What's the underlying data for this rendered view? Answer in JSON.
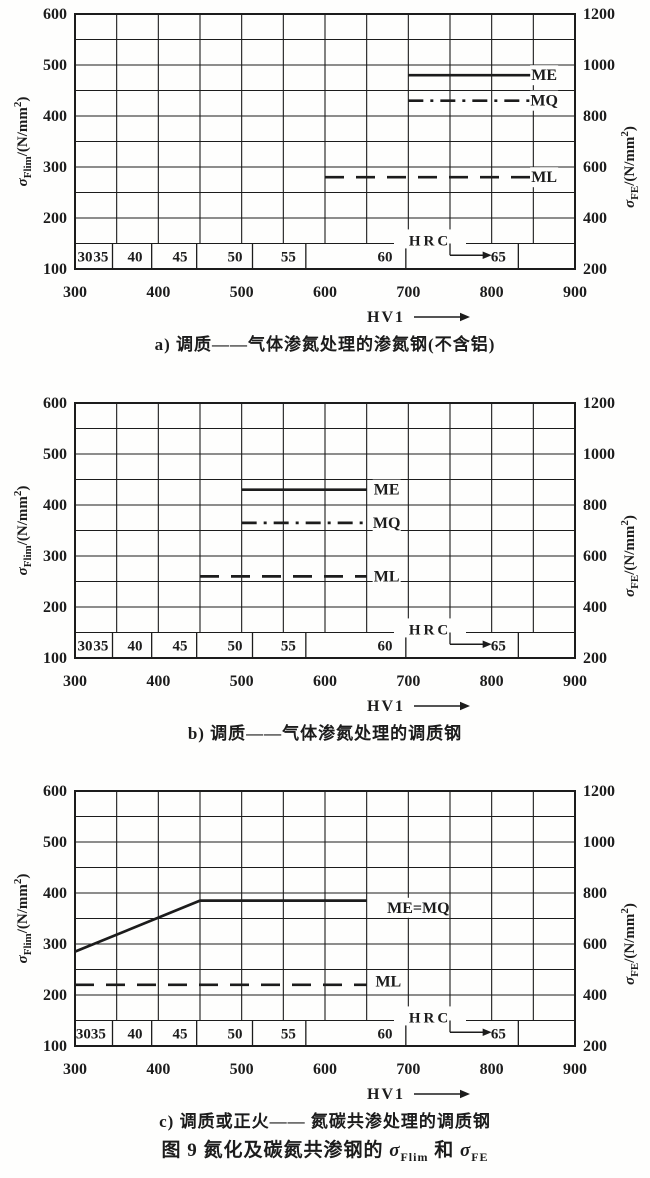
{
  "colors": {
    "ink": "#1c1c1c",
    "paper": "#ffffff"
  },
  "axis_label_parts": {
    "left": [
      {
        "t": "σ",
        "italic": true
      },
      {
        "t": "Flim",
        "sub": true
      },
      {
        "t": "/(N/mm"
      },
      {
        "t": "2",
        "sup": true
      },
      {
        "t": ")"
      }
    ],
    "right": [
      {
        "t": "σ",
        "italic": true
      },
      {
        "t": "FE",
        "sub": true
      },
      {
        "t": "/(N/mm"
      },
      {
        "t": "2",
        "sup": true
      },
      {
        "t": ")"
      }
    ]
  },
  "figure_title": {
    "prefix": "图 9  氮化及碳氮共渗钢的 ",
    "sigma1": "σ",
    "sub1": "Flim",
    "mid": " 和 ",
    "sigma2": "σ",
    "sub2": "FE"
  },
  "chart_data": [
    {
      "id": "a",
      "type": "line",
      "caption": "a) 调质——气体渗氮处理的渗氮钢(不含铝)",
      "xlabel": "HV1",
      "x": {
        "min": 300,
        "max": 900,
        "ticks": [
          300,
          400,
          500,
          600,
          700,
          800,
          900
        ],
        "grid_step": 50
      },
      "y_left": {
        "label": "σFlim/(N/mm²)",
        "min": 100,
        "max": 600,
        "ticks": [
          600,
          500,
          400,
          300,
          200,
          100
        ],
        "grid_step": 50
      },
      "y_right": {
        "label": "σFE/(N/mm²)",
        "min": 200,
        "max": 1200,
        "ticks": [
          1200,
          1000,
          800,
          600,
          400,
          200
        ]
      },
      "series": [
        {
          "name": "ME",
          "style": "solid",
          "points": [
            [
              700,
              480
            ],
            [
              850,
              480
            ]
          ],
          "label_at": [
            863,
            480
          ]
        },
        {
          "name": "MQ",
          "style": "dashdot",
          "points": [
            [
              700,
              430
            ],
            [
              850,
              430
            ]
          ],
          "label_at": [
            863,
            430
          ]
        },
        {
          "name": "ML",
          "style": "dashed",
          "points": [
            [
              600,
              280
            ],
            [
              848,
              280
            ]
          ],
          "label_at": [
            863,
            280
          ]
        }
      ],
      "hrc": {
        "label": "HRC",
        "label_center_hv": 726,
        "label_v": 158,
        "values": [
          30,
          35,
          40,
          45,
          50,
          55,
          60,
          65
        ],
        "value_hv": [
          312,
          331,
          372,
          426,
          492,
          556,
          672,
          808
        ],
        "tick_hv": [
          345,
          392,
          446,
          513,
          577,
          697,
          832
        ],
        "arrow_from_hv": 750,
        "arrow_to_hv": 800,
        "arrow_v": 127
      }
    },
    {
      "id": "b",
      "type": "line",
      "caption": "b) 调质——气体渗氮处理的调质钢",
      "xlabel": "HV1",
      "x": {
        "min": 300,
        "max": 900,
        "ticks": [
          300,
          400,
          500,
          600,
          700,
          800,
          900
        ],
        "grid_step": 50
      },
      "y_left": {
        "label": "σFlim/(N/mm²)",
        "min": 100,
        "max": 600,
        "ticks": [
          600,
          500,
          400,
          300,
          200,
          100
        ],
        "grid_step": 50
      },
      "y_right": {
        "label": "σFE/(N/mm²)",
        "min": 200,
        "max": 1200,
        "ticks": [
          1200,
          1000,
          800,
          600,
          400,
          200
        ]
      },
      "series": [
        {
          "name": "ME",
          "style": "solid",
          "points": [
            [
              500,
              430
            ],
            [
              650,
              430
            ]
          ],
          "label_at": [
            674,
            430
          ]
        },
        {
          "name": "MQ",
          "style": "dashdot",
          "points": [
            [
              500,
              365
            ],
            [
              650,
              365
            ]
          ],
          "label_at": [
            674,
            365
          ]
        },
        {
          "name": "ML",
          "style": "dashed",
          "points": [
            [
              450,
              260
            ],
            [
              650,
              260
            ]
          ],
          "label_at": [
            674,
            260
          ]
        }
      ],
      "hrc": {
        "label": "HRC",
        "label_center_hv": 726,
        "label_v": 158,
        "values": [
          30,
          35,
          40,
          45,
          50,
          55,
          60,
          65
        ],
        "value_hv": [
          312,
          331,
          372,
          426,
          492,
          556,
          672,
          808
        ],
        "tick_hv": [
          345,
          392,
          446,
          513,
          577,
          697,
          832
        ],
        "arrow_from_hv": 750,
        "arrow_to_hv": 800,
        "arrow_v": 127
      }
    },
    {
      "id": "c",
      "type": "line",
      "caption": "c) 调质或正火—— 氮碳共渗处理的调质钢",
      "xlabel": "HV1",
      "x": {
        "min": 300,
        "max": 900,
        "ticks": [
          300,
          400,
          500,
          600,
          700,
          800,
          900
        ],
        "grid_step": 50
      },
      "y_left": {
        "label": "σFlim/(N/mm²)",
        "min": 100,
        "max": 600,
        "ticks": [
          600,
          500,
          400,
          300,
          200,
          100
        ],
        "grid_step": 50
      },
      "y_right": {
        "label": "σFE/(N/mm²)",
        "min": 200,
        "max": 1200,
        "ticks": [
          1200,
          1000,
          800,
          600,
          400,
          200
        ]
      },
      "series": [
        {
          "name": "ME=MQ",
          "style": "solid",
          "points": [
            [
              300,
              285
            ],
            [
              450,
              385
            ],
            [
              650,
              385
            ]
          ],
          "label_at": [
            712,
            371
          ]
        },
        {
          "name": "ML",
          "style": "dashed",
          "points": [
            [
              300,
              220
            ],
            [
              650,
              220
            ]
          ],
          "label_at": [
            676,
            226
          ]
        }
      ],
      "hrc": {
        "label": "HRC",
        "label_center_hv": 726,
        "label_v": 158,
        "values": [
          30,
          35,
          40,
          45,
          50,
          55,
          60,
          65
        ],
        "value_hv": [
          310,
          328,
          372,
          426,
          492,
          556,
          672,
          808
        ],
        "tick_hv": [
          345,
          392,
          446,
          513,
          577,
          697,
          832
        ],
        "arrow_from_hv": 750,
        "arrow_to_hv": 800,
        "arrow_v": 127
      }
    }
  ]
}
